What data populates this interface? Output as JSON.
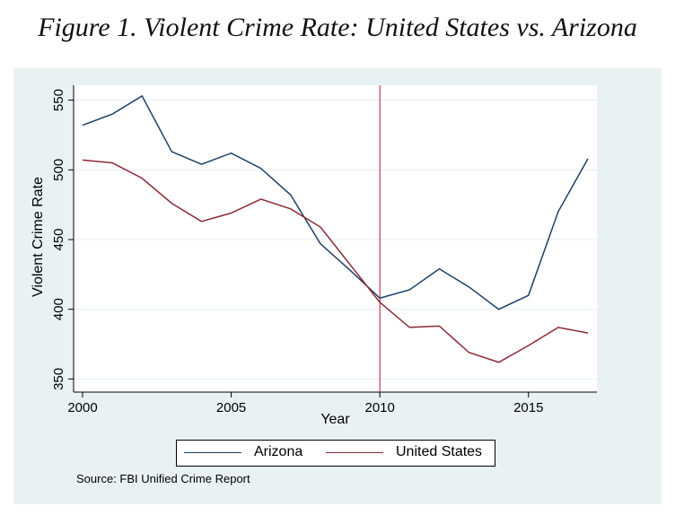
{
  "title": "Figure 1. Violent Crime Rate: United States vs. Arizona",
  "source": "Source: FBI Unified Crime Report",
  "chart_data": {
    "type": "line",
    "title": "Figure 1. Violent Crime Rate: United States vs. Arizona",
    "xlabel": "Year",
    "ylabel": "Violent Crime Rate",
    "xlim": [
      2000,
      2017
    ],
    "ylim": [
      350,
      560
    ],
    "xticks": [
      2000,
      2005,
      2010,
      2015
    ],
    "yticks": [
      350,
      400,
      450,
      500,
      550
    ],
    "grid": true,
    "legend_position": "bottom",
    "reference_line_x": 2010,
    "reference_line_color": "#c0143c",
    "x": [
      2000,
      2001,
      2002,
      2003,
      2004,
      2005,
      2006,
      2007,
      2008,
      2009,
      2010,
      2011,
      2012,
      2013,
      2014,
      2015,
      2016,
      2017
    ],
    "series": [
      {
        "name": "Arizona",
        "color": "#1f3f66",
        "values": [
          532,
          540,
          553,
          513,
          504,
          512,
          501,
          482,
          447,
          428,
          408,
          414,
          429,
          416,
          400,
          410,
          470,
          508
        ]
      },
      {
        "name": "United States",
        "color": "#8b2a35",
        "values": [
          507,
          505,
          494,
          476,
          463,
          469,
          479,
          472,
          459,
          432,
          405,
          387,
          388,
          369,
          362,
          374,
          387,
          383
        ]
      }
    ]
  }
}
